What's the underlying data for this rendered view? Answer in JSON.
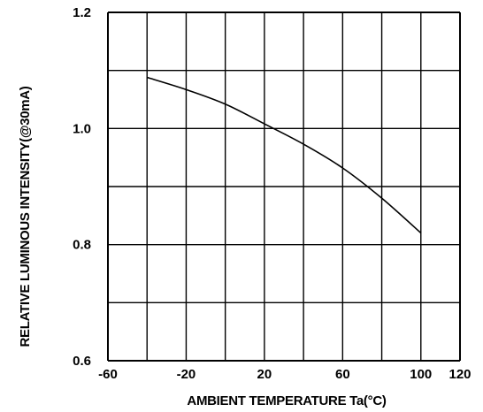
{
  "chart_data": {
    "type": "line",
    "xlabel": "AMBIENT TEMPERATURE Ta(°C)",
    "ylabel": "RELATIVE LUMINOUS INTENSITY(@30mA)",
    "xlim": [
      -60,
      120
    ],
    "ylim": [
      0.6,
      1.2
    ],
    "x_ticks": [
      "-60",
      "-20",
      "20",
      "60",
      "100",
      "120"
    ],
    "x_tick_values": [
      -60,
      -20,
      20,
      60,
      100,
      120
    ],
    "y_ticks": [
      "0.6",
      "0.8",
      "1.0",
      "1.2"
    ],
    "y_tick_values": [
      0.6,
      0.8,
      1.0,
      1.2
    ],
    "x_grid": [
      -60,
      -40,
      -20,
      0,
      20,
      40,
      60,
      80,
      100,
      120
    ],
    "y_grid": [
      0.6,
      0.7,
      0.8,
      0.9,
      1.0,
      1.1,
      1.2
    ],
    "grid": true,
    "series": [
      {
        "x": [
          -40,
          -20,
          0,
          20,
          40,
          60,
          80,
          100
        ],
        "y": [
          1.088,
          1.067,
          1.042,
          1.008,
          0.973,
          0.932,
          0.88,
          0.82
        ]
      }
    ]
  }
}
